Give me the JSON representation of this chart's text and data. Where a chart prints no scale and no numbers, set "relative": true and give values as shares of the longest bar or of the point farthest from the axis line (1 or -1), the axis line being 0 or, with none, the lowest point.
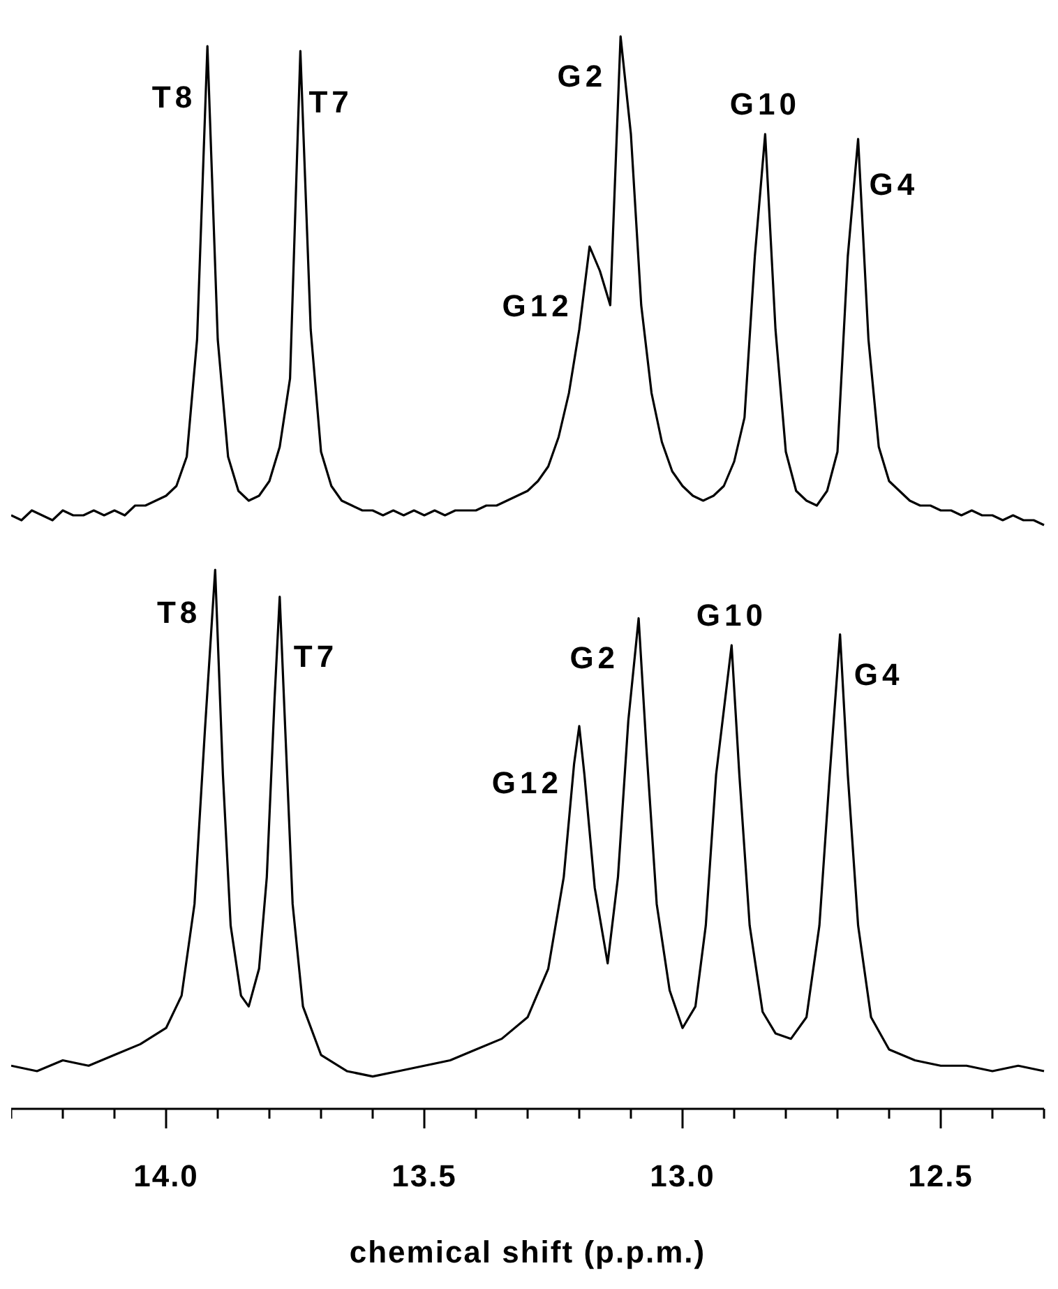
{
  "chart_data": [
    {
      "type": "line",
      "relative": true,
      "tick_labels": false,
      "categories": [
        null,
        null,
        null,
        null,
        null,
        null,
        null,
        null,
        null,
        null,
        null,
        null,
        null,
        null,
        null,
        null,
        null,
        null,
        null,
        null,
        null,
        null,
        null,
        null,
        null,
        null,
        null,
        null,
        null,
        null,
        null,
        null,
        null,
        null,
        null,
        null,
        null,
        null,
        null,
        null,
        null,
        null,
        null,
        null,
        null,
        null,
        null,
        null,
        null,
        null,
        null,
        null,
        null,
        null,
        null,
        null,
        null,
        null,
        null,
        null,
        null,
        null,
        null,
        null,
        null,
        null,
        null,
        null,
        null,
        null,
        null,
        null,
        null,
        null,
        null,
        null,
        null,
        null,
        null,
        null,
        null,
        null,
        null,
        null,
        null,
        null,
        null,
        null,
        null,
        null,
        null,
        null,
        null,
        null,
        null,
        null,
        null,
        null,
        null,
        null,
        null
      ],
      "series": [
        {
          "color": "#000000",
          "values": [
            0.02,
            0.01,
            0.03,
            0.02,
            0.01,
            0.03,
            0.02,
            0.02,
            0.03,
            0.02,
            0.03,
            0.02,
            0.04,
            0.04,
            0.05,
            0.06,
            0.08,
            0.14,
            0.38,
            0.98,
            0.38,
            0.14,
            0.07,
            0.05,
            0.06,
            0.09,
            0.16,
            0.3,
            0.97,
            0.4,
            0.15,
            0.08,
            0.05,
            0.04,
            0.03,
            0.03,
            0.02,
            0.03,
            0.02,
            0.03,
            0.02,
            0.03,
            0.02,
            0.03,
            0.03,
            0.03,
            0.04,
            0.04,
            0.05,
            0.06,
            0.07,
            0.09,
            0.12,
            0.18,
            0.27,
            0.4,
            0.57,
            0.52,
            0.45,
            1.0,
            0.8,
            0.45,
            0.27,
            0.17,
            0.11,
            0.08,
            0.06,
            0.05,
            0.06,
            0.08,
            0.13,
            0.22,
            0.55,
            0.8,
            0.4,
            0.15,
            0.07,
            0.05,
            0.04,
            0.07,
            0.15,
            0.55,
            0.79,
            0.38,
            0.16,
            0.09,
            0.07,
            0.05,
            0.04,
            0.04,
            0.03,
            0.03,
            0.02,
            0.03,
            0.02,
            0.02,
            0.01,
            0.02,
            0.01,
            0.01,
            0.0
          ]
        }
      ],
      "annotations": [
        "T8",
        "T7",
        "G2",
        "G12",
        "G10",
        "G4"
      ]
    },
    {
      "type": "line",
      "relative": true,
      "xlim": [
        14.3,
        12.3
      ],
      "xlabel": "chemical shift (p.p.m.)",
      "xticks": [
        {
          "value": 14.0,
          "label": "14.0"
        },
        {
          "value": 13.5,
          "label": "13.5"
        },
        {
          "value": 13.0,
          "label": "13.0"
        },
        {
          "value": 12.5,
          "label": "12.5"
        }
      ],
      "series": [
        {
          "color": "#000000",
          "x": [
            14.3,
            14.25,
            14.2,
            14.15,
            14.1,
            14.05,
            14.0,
            13.97,
            13.945,
            13.925,
            13.905,
            13.89,
            13.875,
            13.855,
            13.84,
            13.82,
            13.805,
            13.79,
            13.78,
            13.77,
            13.755,
            13.735,
            13.7,
            13.65,
            13.6,
            13.55,
            13.5,
            13.45,
            13.4,
            13.35,
            13.3,
            13.26,
            13.23,
            13.21,
            13.2,
            13.19,
            13.17,
            13.145,
            13.125,
            13.105,
            13.085,
            13.07,
            13.05,
            13.025,
            13.0,
            12.975,
            12.955,
            12.935,
            12.905,
            12.89,
            12.87,
            12.845,
            12.82,
            12.79,
            12.76,
            12.735,
            12.715,
            12.695,
            12.68,
            12.66,
            12.635,
            12.6,
            12.55,
            12.5,
            12.45,
            12.4,
            12.35,
            12.3
          ],
          "values": [
            0.08,
            0.07,
            0.09,
            0.08,
            0.1,
            0.12,
            0.15,
            0.21,
            0.38,
            0.7,
            1.0,
            0.62,
            0.34,
            0.21,
            0.19,
            0.26,
            0.43,
            0.76,
            0.95,
            0.72,
            0.38,
            0.19,
            0.1,
            0.07,
            0.06,
            0.07,
            0.08,
            0.09,
            0.11,
            0.13,
            0.17,
            0.26,
            0.43,
            0.64,
            0.71,
            0.62,
            0.41,
            0.27,
            0.43,
            0.72,
            0.91,
            0.67,
            0.38,
            0.22,
            0.15,
            0.19,
            0.34,
            0.62,
            0.86,
            0.62,
            0.34,
            0.18,
            0.14,
            0.13,
            0.17,
            0.34,
            0.62,
            0.88,
            0.62,
            0.34,
            0.17,
            0.11,
            0.09,
            0.08,
            0.08,
            0.07,
            0.08,
            0.07
          ]
        }
      ],
      "annotations": [
        {
          "text": "T8",
          "x": 13.905,
          "y": 1.0
        },
        {
          "text": "T7",
          "x": 13.78,
          "y": 0.95
        },
        {
          "text": "G2",
          "x": 13.085,
          "y": 0.91
        },
        {
          "text": "G12",
          "x": 13.2,
          "y": 0.71
        },
        {
          "text": "G10",
          "x": 12.905,
          "y": 0.86
        },
        {
          "text": "G4",
          "x": 12.695,
          "y": 0.88
        }
      ]
    }
  ]
}
